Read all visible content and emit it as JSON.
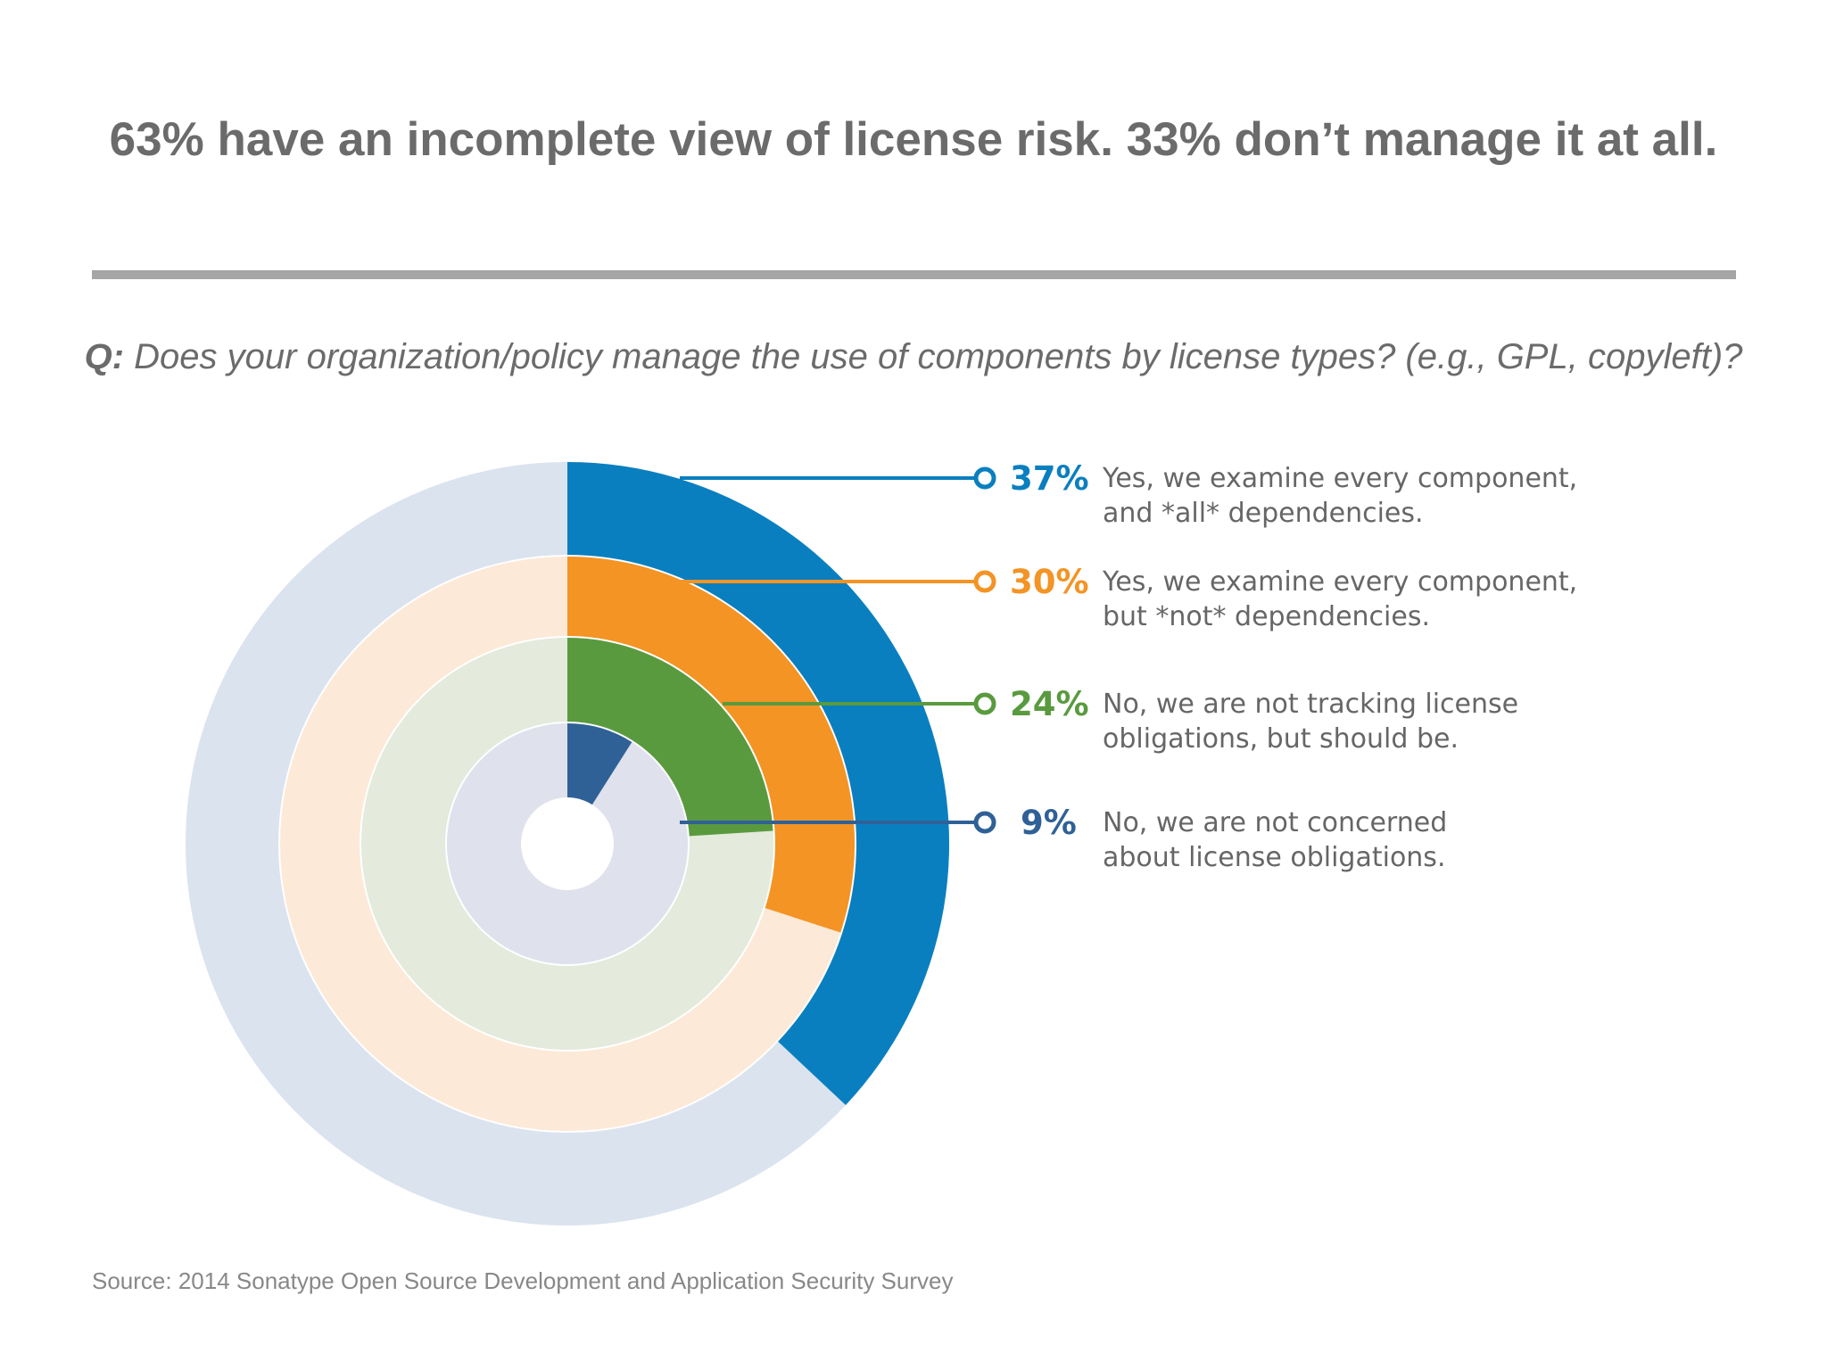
{
  "headline": "63% have an incomplete view of license risk. 33% don’t manage it at all.",
  "question": {
    "prefix": "Q:",
    "text": "Does your organization/policy manage the use of components by license types? (e.g., GPL, copyleft)?"
  },
  "chart_data": {
    "type": "radial-bar",
    "title": "",
    "series": [
      {
        "value": 37,
        "label": "37%",
        "text": [
          "Yes, we examine every component,",
          "and *all* dependencies."
        ],
        "color": "#0a7fbf",
        "track_color": "#dbe3ef"
      },
      {
        "value": 30,
        "label": "30%",
        "text": [
          "Yes, we examine every component,",
          "but *not* dependencies."
        ],
        "color": "#f39425",
        "track_color": "#fde9d7"
      },
      {
        "value": 24,
        "label": "24%",
        "text": [
          "No, we are not tracking license",
          "obligations, but should be."
        ],
        "color": "#5a9a3f",
        "track_color": "#e4eadc"
      },
      {
        "value": 9,
        "label": "9%",
        "text": [
          "No, we are not concerned",
          "about license obligations."
        ],
        "color": "#2f6197",
        "track_color": "#dfe1ec"
      }
    ],
    "range": [
      0,
      100
    ],
    "legend_position": "right"
  },
  "source": "Source: 2014 Sonatype Open Source Development and Application Security Survey"
}
